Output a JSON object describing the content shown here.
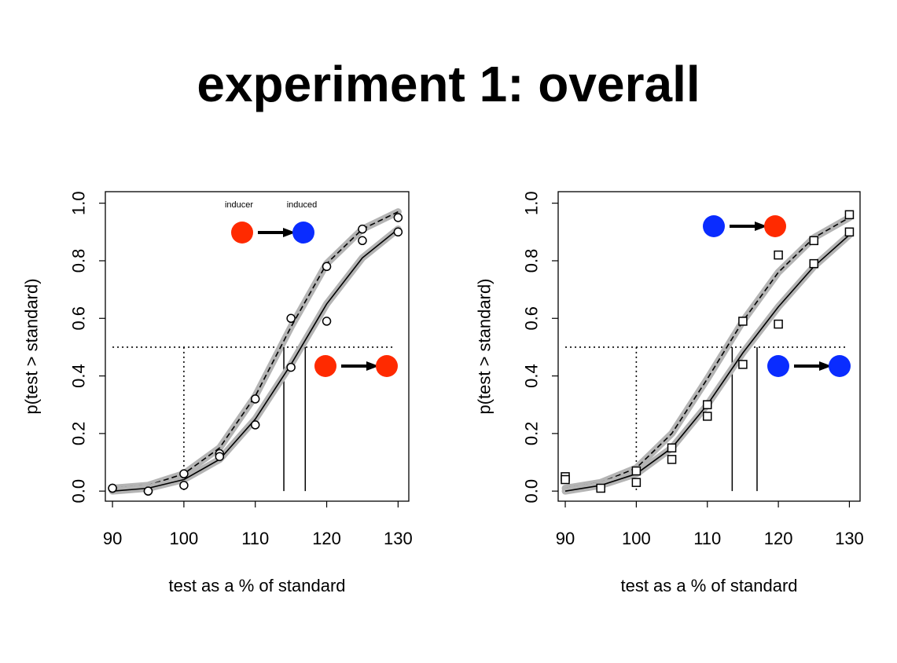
{
  "title": "experiment 1: overall",
  "colors": {
    "red": "#ff2a00",
    "blue": "#0a2cff",
    "band": "#b4b4b4"
  },
  "chart_data": [
    {
      "type": "line",
      "id": "left",
      "marker": "circle",
      "xlabel": "test as a % of standard",
      "ylabel": "p(test > standard)",
      "xlim": [
        89,
        131.5
      ],
      "ylim": [
        -0.035,
        1.04
      ],
      "xticks": [
        90,
        100,
        110,
        120,
        130
      ],
      "yticks": [
        0.0,
        0.2,
        0.4,
        0.6,
        0.8,
        1.0
      ],
      "ytick_labels": [
        "0.0",
        "0.2",
        "0.4",
        "0.6",
        "0.8",
        "1.0"
      ],
      "series": [
        {
          "style": "dashed",
          "marker_color": "#ff2a00",
          "arrow_color": "#0a2cff",
          "x": [
            90,
            95,
            100,
            105,
            110,
            115,
            120,
            125,
            130
          ],
          "y": [
            0.01,
            0.02,
            0.06,
            0.15,
            0.33,
            0.57,
            0.79,
            0.91,
            0.97
          ],
          "points_x": [
            90,
            95,
            100,
            105,
            110,
            115,
            120,
            125,
            130
          ],
          "points_y": [
            0.01,
            0.0,
            0.06,
            0.13,
            0.32,
            0.6,
            0.78,
            0.91,
            0.95
          ],
          "pse": 114
        },
        {
          "style": "solid",
          "marker_color": "#ff2a00",
          "arrow_color": "#ff2a00",
          "x": [
            90,
            95,
            100,
            105,
            110,
            115,
            120,
            125,
            130
          ],
          "y": [
            0.0,
            0.01,
            0.04,
            0.11,
            0.25,
            0.44,
            0.65,
            0.81,
            0.91
          ],
          "points_x": [
            90,
            95,
            100,
            105,
            110,
            115,
            120,
            125,
            130
          ],
          "points_y": [
            0.01,
            0.0,
            0.02,
            0.12,
            0.23,
            0.43,
            0.59,
            0.87,
            0.9
          ],
          "pse": 117
        }
      ],
      "reference": {
        "y": 0.5,
        "x": 100
      },
      "legend": {
        "inducer_label": "inducer",
        "induced_label": "induced"
      }
    },
    {
      "type": "line",
      "id": "right",
      "marker": "square",
      "xlabel": "test as a % of standard",
      "ylabel": "p(test > standard)",
      "xlim": [
        89,
        131.5
      ],
      "ylim": [
        -0.035,
        1.04
      ],
      "xticks": [
        90,
        100,
        110,
        120,
        130
      ],
      "yticks": [
        0.0,
        0.2,
        0.4,
        0.6,
        0.8,
        1.0
      ],
      "ytick_labels": [
        "0.0",
        "0.2",
        "0.4",
        "0.6",
        "0.8",
        "1.0"
      ],
      "series": [
        {
          "style": "dashed",
          "marker_color": "#0a2cff",
          "arrow_color": "#ff2a00",
          "x": [
            90,
            95,
            100,
            105,
            110,
            115,
            120,
            125,
            130
          ],
          "y": [
            0.01,
            0.03,
            0.08,
            0.2,
            0.39,
            0.59,
            0.76,
            0.88,
            0.95
          ],
          "points_x": [
            90,
            90,
            95,
            100,
            100,
            105,
            105,
            110,
            110,
            115,
            115,
            120,
            120,
            125,
            125,
            130,
            130
          ],
          "points_y": [
            0.05,
            0.04,
            0.01,
            0.03,
            0.07,
            0.15,
            0.11,
            0.3,
            0.26,
            0.59,
            0.44,
            0.82,
            0.58,
            0.87,
            0.79,
            0.96,
            0.9
          ],
          "pse": 113.5
        },
        {
          "style": "solid",
          "marker_color": "#0a2cff",
          "arrow_color": "#0a2cff",
          "x": [
            90,
            95,
            100,
            105,
            110,
            115,
            120,
            125,
            130
          ],
          "y": [
            0.0,
            0.02,
            0.06,
            0.15,
            0.3,
            0.48,
            0.64,
            0.78,
            0.89
          ],
          "pse": 117
        }
      ],
      "reference": {
        "y": 0.5,
        "x": 100
      }
    }
  ]
}
